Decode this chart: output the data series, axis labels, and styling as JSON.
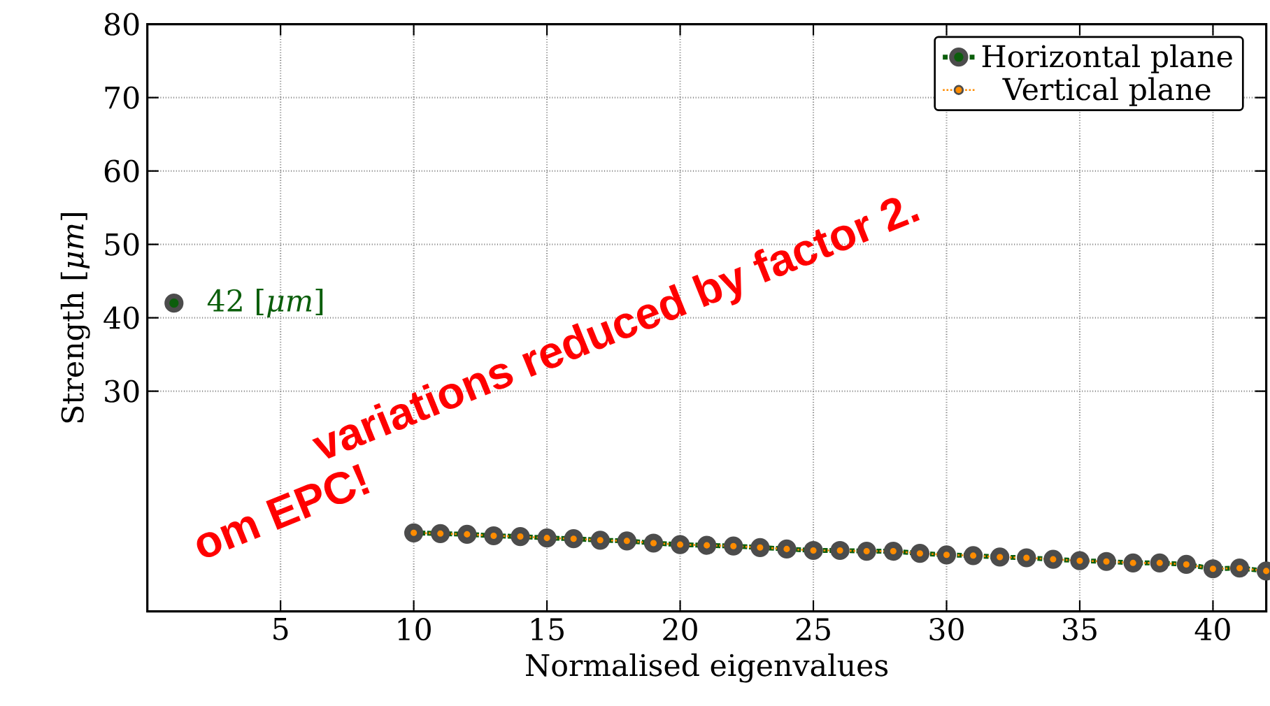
{
  "chart_data": {
    "type": "line",
    "xlabel": "Normalised eigenvalues",
    "ylabel": "Strength [*μm*]",
    "x": [
      1,
      2,
      3,
      4,
      5,
      6,
      7,
      8,
      9,
      10,
      11,
      12,
      13,
      14,
      15,
      16,
      17,
      18,
      19,
      20,
      21,
      22,
      23,
      24,
      25,
      26,
      27,
      28,
      29,
      30,
      31,
      32,
      33,
      34,
      35,
      36,
      37,
      38,
      39,
      40,
      41,
      42
    ],
    "series": [
      {
        "name": "Horizontal plane",
        "color": "#0b5e0b",
        "values": [
          42,
          null,
          null,
          null,
          null,
          null,
          null,
          null,
          null,
          10.7,
          10.6,
          10.5,
          10.3,
          10.2,
          10.0,
          9.9,
          9.7,
          9.6,
          9.3,
          9.1,
          9.0,
          8.9,
          8.7,
          8.5,
          8.3,
          8.3,
          8.2,
          8.2,
          7.9,
          7.7,
          7.6,
          7.4,
          7.3,
          7.1,
          6.9,
          6.8,
          6.6,
          6.6,
          6.4,
          5.8,
          5.9,
          5.5
        ]
      },
      {
        "name": "Vertical plane",
        "color": "#ff8c00",
        "values": [
          null,
          null,
          null,
          null,
          null,
          null,
          null,
          null,
          null,
          10.7,
          10.6,
          10.5,
          10.3,
          10.2,
          10.0,
          9.9,
          9.7,
          9.6,
          9.3,
          9.1,
          9.0,
          8.9,
          8.7,
          8.5,
          8.3,
          8.3,
          8.2,
          8.2,
          7.9,
          7.7,
          7.6,
          7.4,
          7.3,
          7.1,
          6.9,
          6.8,
          6.6,
          6.6,
          6.4,
          5.8,
          5.9,
          5.5
        ]
      }
    ],
    "xlim": [
      0,
      42
    ],
    "ylim": [
      0,
      80
    ],
    "xticks": [
      5,
      10,
      15,
      20,
      25,
      30,
      35,
      40
    ],
    "yticks": [
      30,
      40,
      50,
      60,
      70,
      80
    ],
    "grid": true,
    "legend": "top right",
    "marker": "circle",
    "line_style": "dotted",
    "annotations": [
      {
        "text": "42 [*μm*]",
        "x": 1,
        "y": 42
      },
      "variations reduced by factor 2.",
      "om EPC!"
    ]
  }
}
